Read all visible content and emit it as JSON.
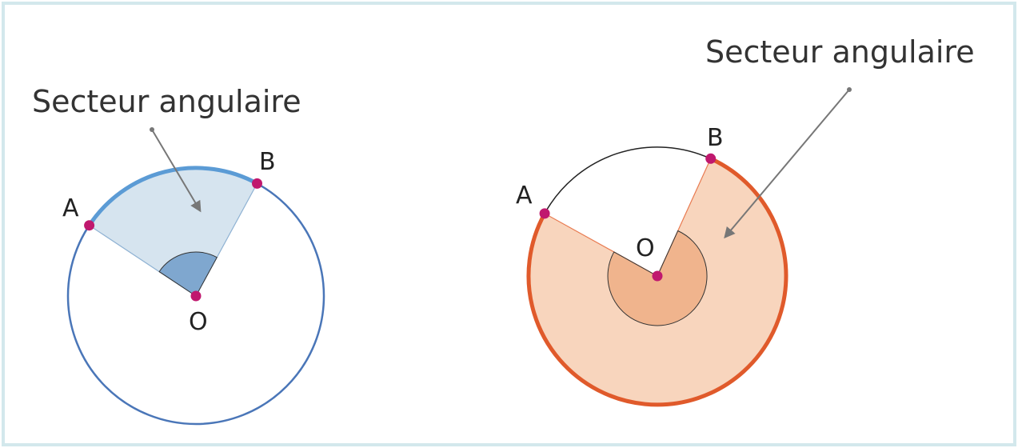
{
  "figures": [
    {
      "caption": "Secteur angulaire",
      "points": [
        "A",
        "B",
        "O"
      ]
    },
    {
      "caption": "Secteur angulaire",
      "points": [
        "A",
        "B",
        "O"
      ]
    }
  ]
}
